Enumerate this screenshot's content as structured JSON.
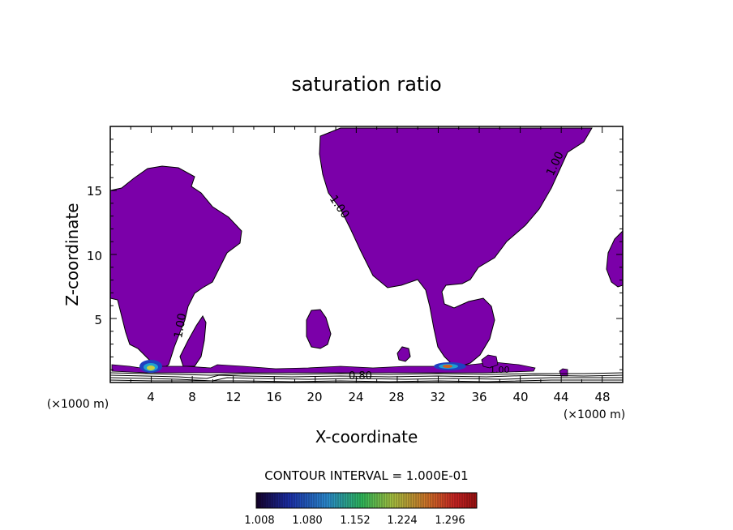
{
  "chart_data": {
    "type": "contour",
    "title": "saturation ratio",
    "xlabel": "X-coordinate",
    "ylabel": "Z-coordinate",
    "x_unit_left": "(×1000 m)",
    "x_unit_right": "(×1000 m)",
    "xlim": [
      0,
      50
    ],
    "ylim": [
      0,
      20
    ],
    "x_ticks": [
      "4",
      "8",
      "12",
      "16",
      "20",
      "24",
      "28",
      "32",
      "36",
      "40",
      "44",
      "48"
    ],
    "y_ticks": [
      "5",
      "10",
      "15"
    ],
    "contour_interval_label": "CONTOUR INTERVAL = 1.000E-01",
    "contour_labels": [
      "1.00",
      "1.00",
      "1.00",
      "1.00",
      "0.80",
      "1.00"
    ],
    "colorbar_ticks": [
      "1.008",
      "1.080",
      "1.152",
      "1.224",
      "1.296"
    ],
    "colors": {
      "fill": "#7b00a9",
      "colorbar": [
        "#1a0033",
        "#2040c0",
        "#20a0d0",
        "#30c060",
        "#c0c040",
        "#d06020",
        "#c02020",
        "#a01010"
      ]
    }
  }
}
